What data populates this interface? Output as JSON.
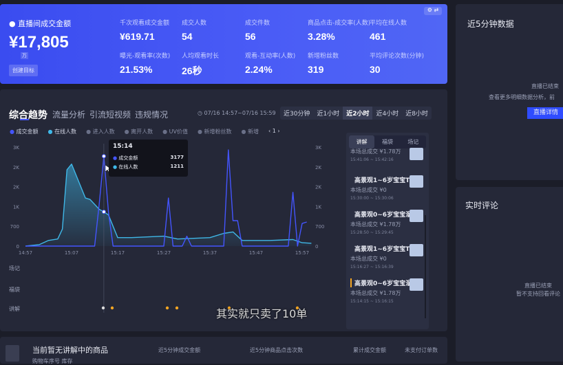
{
  "summary": {
    "title": "直播间成交金额",
    "value": "¥17,805",
    "unit": "万",
    "create_goal": "创建目标",
    "metrics": [
      {
        "label": "千次观看成交金额",
        "value": "¥619.71"
      },
      {
        "label": "成交人数",
        "value": "54"
      },
      {
        "label": "成交件数",
        "value": "56"
      },
      {
        "label": "商品点击-成交率(人数)",
        "value": "3.28%"
      },
      {
        "label": "平均在线人数",
        "value": "461"
      },
      {
        "label": "曝光-观看率(次数)",
        "value": "21.53%"
      },
      {
        "label": "人均观看时长",
        "value": "26秒"
      },
      {
        "label": "观看-互动率(人数)",
        "value": "2.24%"
      },
      {
        "label": "新增粉丝数",
        "value": "319"
      },
      {
        "label": "平均评论次数(分钟)",
        "value": "30"
      }
    ]
  },
  "tabs": [
    "综合趋势",
    "流量分析",
    "引流短视频",
    "违规情况"
  ],
  "date_range": "07/16 14:57~07/16 15:59",
  "ranges": [
    "近30分钟",
    "近1小时",
    "近2小时",
    "近4小时",
    "近8小时"
  ],
  "active_range": 2,
  "legend": [
    {
      "label": "成交金额",
      "color": "#4455ff",
      "active": true
    },
    {
      "label": "在线人数",
      "color": "#3fb8e8",
      "active": true
    },
    {
      "label": "进入人数",
      "active": false
    },
    {
      "label": "离开人数",
      "active": false
    },
    {
      "label": "UV价值",
      "active": false
    },
    {
      "label": "新增粉丝数",
      "active": false
    },
    {
      "label": "新增",
      "active": false
    }
  ],
  "legend_page": "1",
  "tooltip": {
    "time": "15:14",
    "rows": [
      {
        "label": "成交金额",
        "value": "3177"
      },
      {
        "label": "在线人数",
        "value": "1211"
      }
    ]
  },
  "event_rows": [
    "场记",
    "福袋",
    "讲解"
  ],
  "subtitle": "其实就只卖了10单",
  "chart_data": {
    "type": "line",
    "ylim": [
      0,
      3500
    ],
    "y_tick_labels": [
      "0",
      "700",
      "1K",
      "2K",
      "2K",
      "3K"
    ],
    "x_tick_labels": [
      "14:57",
      "15:07",
      "15:17",
      "15:27",
      "15:37",
      "15:47",
      "15:57"
    ],
    "xlim": [
      "14:57",
      "15:59"
    ],
    "grid": false,
    "series": [
      {
        "name": "成交金额",
        "color": "#4455ff",
        "points": [
          [
            "14:57",
            0
          ],
          [
            "15:12",
            0
          ],
          [
            "15:13",
            1500
          ],
          [
            "15:14",
            3177
          ],
          [
            "15:15",
            1200
          ],
          [
            "15:16",
            0
          ],
          [
            "15:27",
            0
          ],
          [
            "15:28",
            1700
          ],
          [
            "15:29",
            0
          ],
          [
            "15:31",
            0
          ],
          [
            "15:32",
            350
          ],
          [
            "15:33",
            0
          ],
          [
            "15:40",
            0
          ],
          [
            "15:41",
            3400
          ],
          [
            "15:42",
            900
          ],
          [
            "15:43",
            900
          ],
          [
            "15:44",
            0
          ],
          [
            "15:54",
            0
          ],
          [
            "15:55",
            1900
          ],
          [
            "15:56",
            0
          ],
          [
            "15:57",
            800
          ],
          [
            "15:58",
            850
          ]
        ]
      },
      {
        "name": "在线人数",
        "color": "#3fb8e8",
        "points": [
          [
            "14:57",
            0
          ],
          [
            "15:00",
            50
          ],
          [
            "15:02",
            200
          ],
          [
            "15:04",
            250
          ],
          [
            "15:05",
            600
          ],
          [
            "15:06",
            2700
          ],
          [
            "15:07",
            2900
          ],
          [
            "15:08",
            2500
          ],
          [
            "15:10",
            1700
          ],
          [
            "15:11",
            1650
          ],
          [
            "15:13",
            1300
          ],
          [
            "15:14",
            1211
          ],
          [
            "15:15",
            1100
          ],
          [
            "15:17",
            300
          ],
          [
            "15:20",
            300
          ],
          [
            "15:27",
            350
          ],
          [
            "15:30",
            250
          ],
          [
            "15:37",
            300
          ],
          [
            "15:40",
            450
          ],
          [
            "15:42",
            500
          ],
          [
            "15:44",
            200
          ],
          [
            "15:50",
            200
          ],
          [
            "15:55",
            230
          ],
          [
            "15:57",
            120
          ],
          [
            "15:59",
            100
          ]
        ]
      }
    ]
  },
  "explain_tabs": [
    "讲解",
    "福袋",
    "场记"
  ],
  "explain_items": [
    {
      "title": "",
      "sales": "本场总成交 ¥1.78万",
      "time": "15:41:06 ~ 15:42:16"
    },
    {
      "title": "高景观1~6岁宝宝T1...",
      "sales": "本场总成交 ¥0",
      "time": "15:30:00 ~ 15:30:06"
    },
    {
      "title": "高景观0~6岁宝宝溜...",
      "sales": "本场总成交 ¥1.78万",
      "time": "15:28:50 ~ 15:29:45"
    },
    {
      "title": "高景观1~6岁宝宝T1...",
      "sales": "本场总成交 ¥0",
      "time": "15:16:27 ~ 15:16:39"
    },
    {
      "title": "高景观0~6岁宝宝溜...",
      "sales": "本场总成交 ¥1.78万",
      "time": "15:14:15 ~ 15:16:15"
    }
  ],
  "bottom": {
    "title": "当前暂无讲解中的商品",
    "sub": "购物车序号  库存",
    "cols": [
      "近5分钟成交金额",
      "近5分钟商品点击次数",
      "累计成交金额",
      "未支付订单数"
    ]
  },
  "right1": {
    "title": "近5分钟数据",
    "msg1": "直播已结束",
    "msg2": "查看更多明细数据分析，前",
    "button": "直播详情"
  },
  "right2": {
    "title": "实时评论",
    "msg1": "直播已结束",
    "msg2": "暂不支持回看评论"
  }
}
